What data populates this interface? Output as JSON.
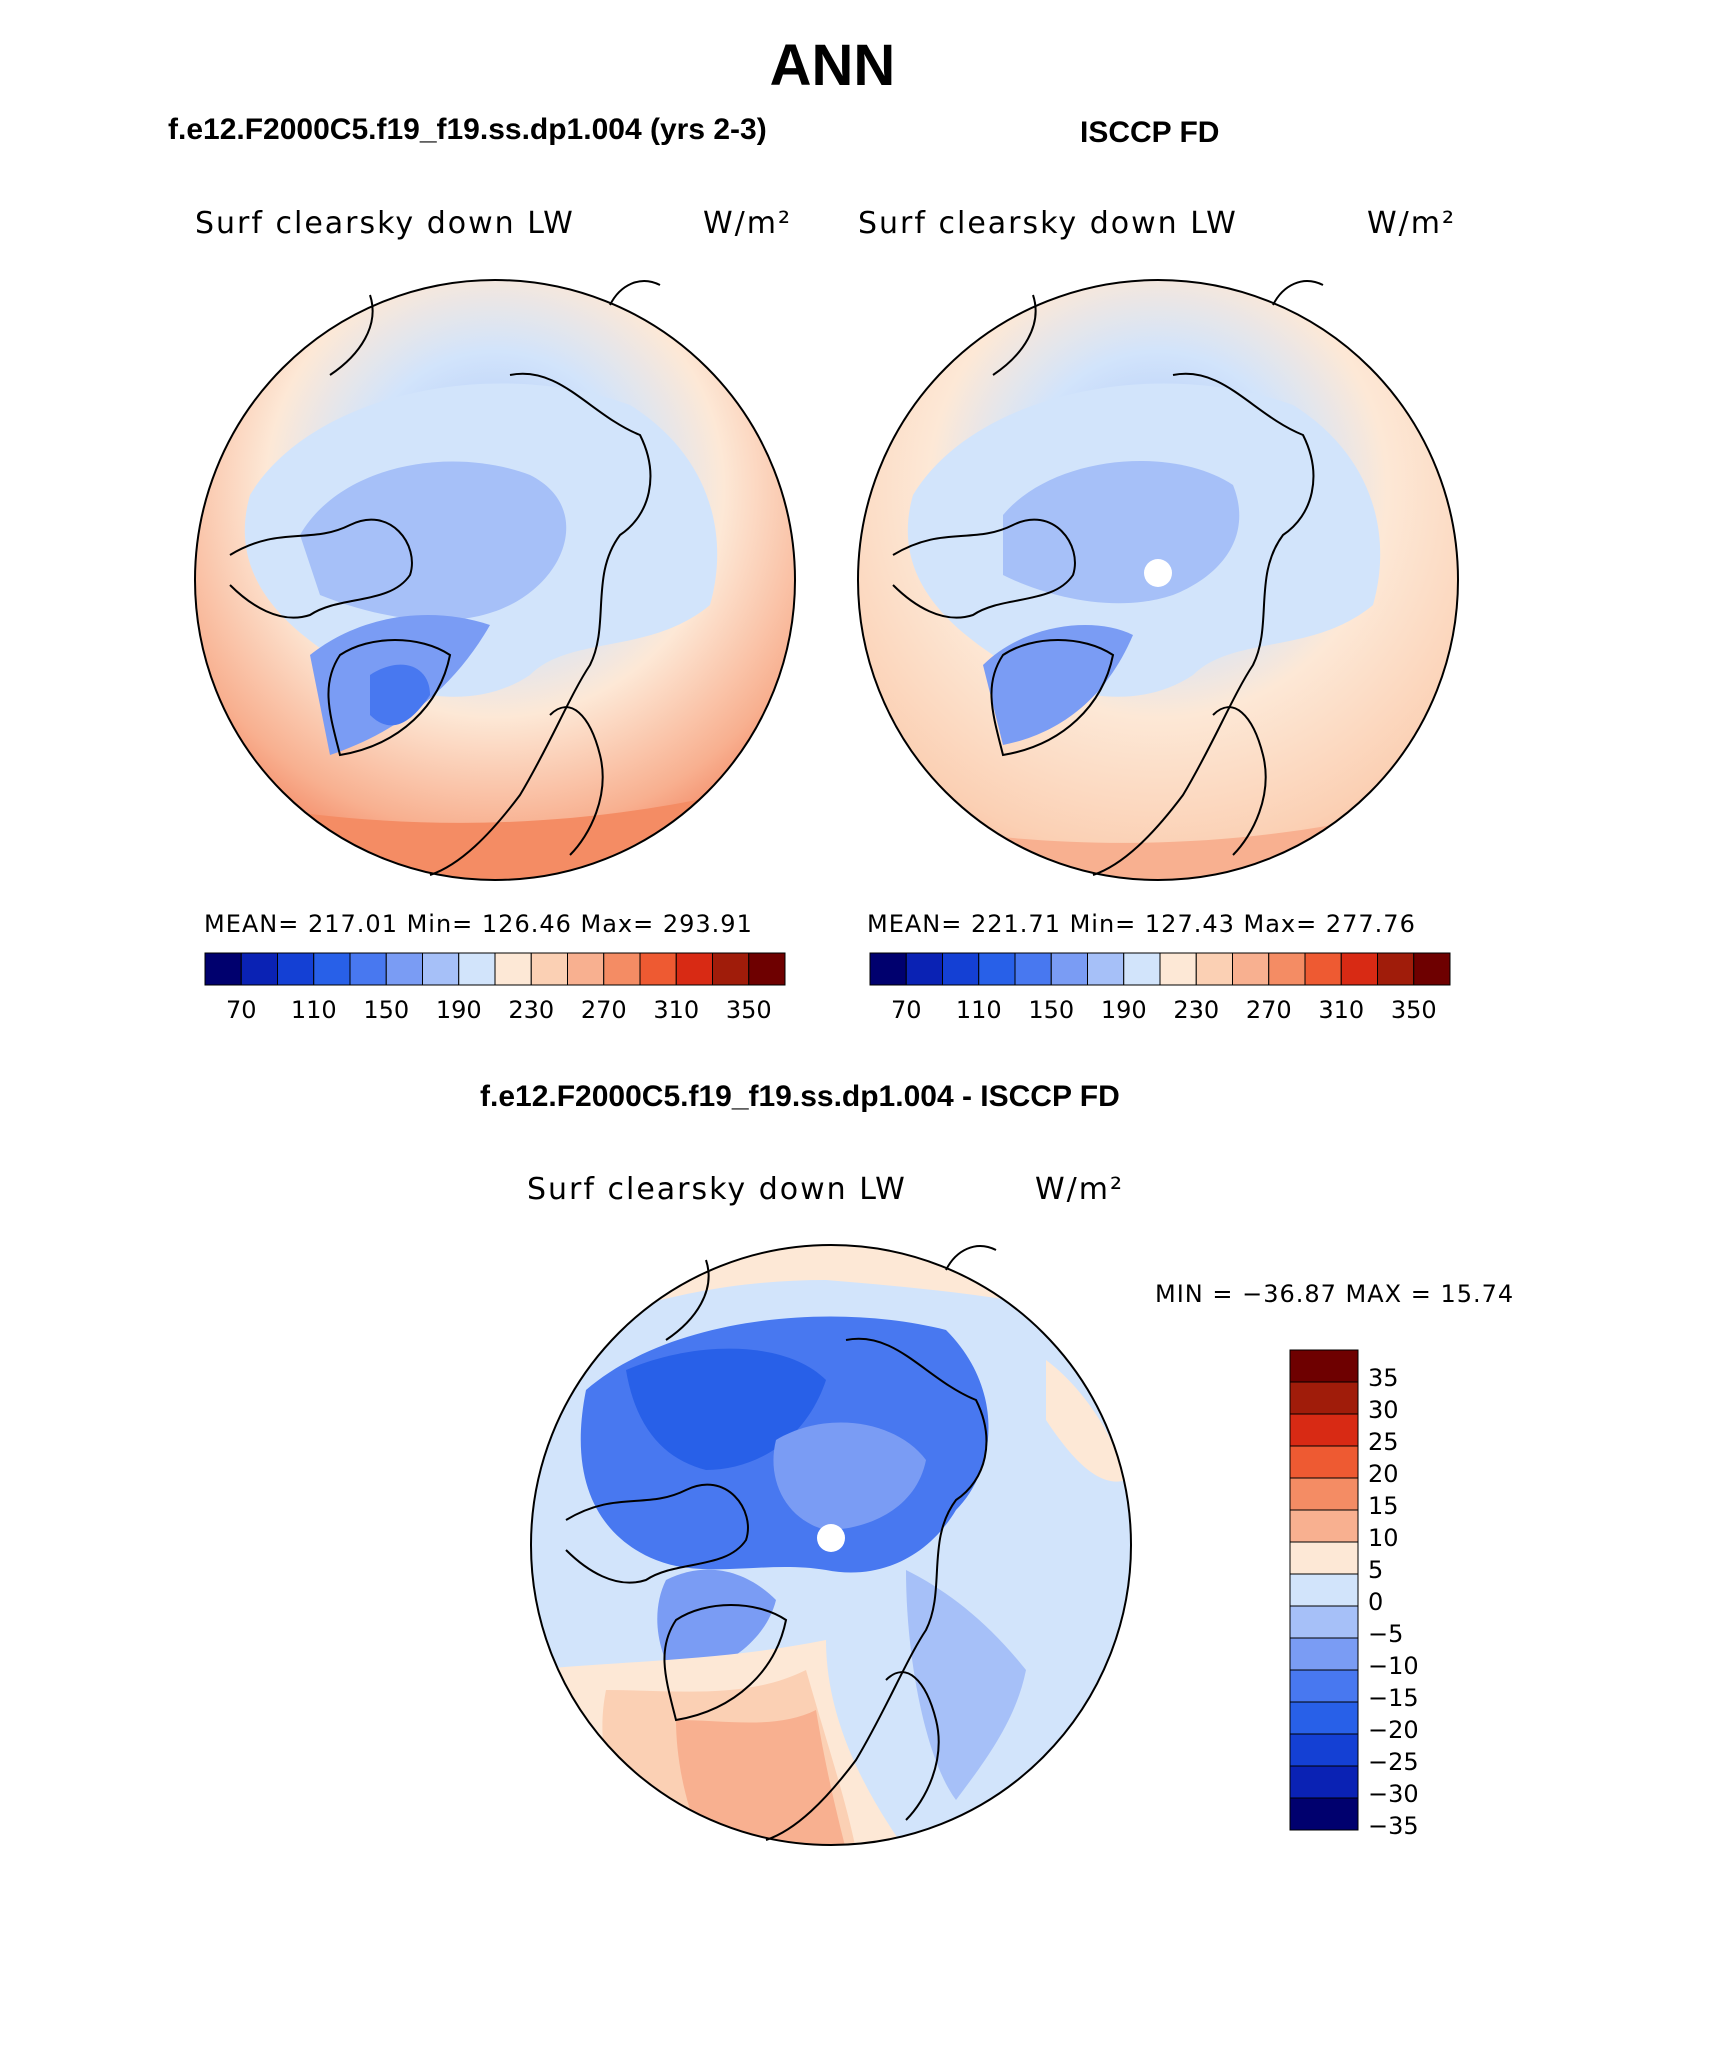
{
  "figure": {
    "season": "ANN",
    "diff_title": "f.e12.F2000C5.f19_f19.ss.dp1.004 - ISCCP FD"
  },
  "panels": [
    {
      "title": "f.e12.F2000C5.f19_f19.ss.dp1.004 (yrs 2-3)",
      "variable": "Surf clearsky down LW",
      "units": "W/m²",
      "stats": "MEAN= 217.01   Min= 126.46   Max= 293.91"
    },
    {
      "title": "ISCCP FD",
      "variable": "Surf clearsky down LW",
      "units": "W/m²",
      "stats": "MEAN= 221.71   Min= 127.43   Max= 277.76"
    },
    {
      "variable": "Surf clearsky down LW",
      "units": "W/m²",
      "stats": "MIN = −36.87 MAX =  15.74"
    }
  ],
  "colorbars": {
    "abs_colors": [
      "#00006e",
      "#0a22b4",
      "#1440d4",
      "#2860e8",
      "#4878f0",
      "#7a9cf4",
      "#a6c0f8",
      "#d2e4fb",
      "#fde8d6",
      "#fbd0b4",
      "#f8b090",
      "#f48c64",
      "#ee5a32",
      "#d82a14",
      "#a01c0a",
      "#6e0000"
    ],
    "abs_labels": [
      "70",
      "110",
      "150",
      "190",
      "230",
      "270",
      "310",
      "350"
    ],
    "diff_colors": [
      "#6e0000",
      "#a01c0a",
      "#d82a14",
      "#ee5a32",
      "#f48c64",
      "#f8b090",
      "#fde8d6",
      "#d2e4fb",
      "#a6c0f8",
      "#7a9cf4",
      "#4878f0",
      "#2860e8",
      "#1440d4",
      "#0a22b4",
      "#00006e"
    ],
    "diff_labels": [
      "35",
      "30",
      "25",
      "20",
      "15",
      "10",
      "5",
      "0",
      "−5",
      "−10",
      "−15",
      "−20",
      "−25",
      "−30",
      "−35"
    ]
  }
}
